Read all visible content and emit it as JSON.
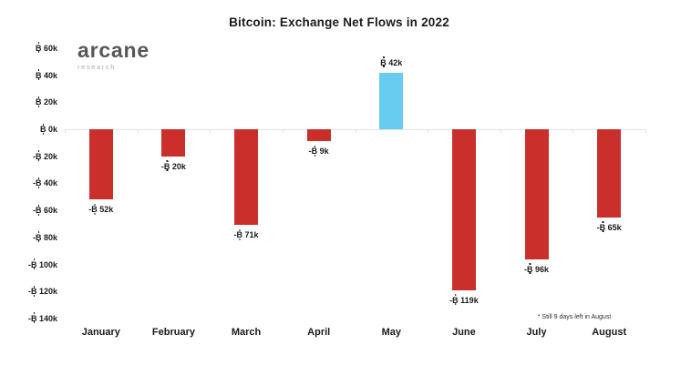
{
  "title": "Bitcoin: Exchange Net Flows in 2022",
  "logo": {
    "name": "arcane",
    "tagline": "research"
  },
  "footnote": "* Still 9 days left in August",
  "colors": {
    "negative_bar": "#cb2f2b",
    "positive_bar": "#68cbf0",
    "axis": "#e4e4e4",
    "text": "#1b1b1b"
  },
  "chart_data": {
    "type": "bar",
    "title": "Bitcoin: Exchange Net Flows in 2022",
    "categories": [
      "January",
      "February",
      "March",
      "April",
      "May",
      "June",
      "July",
      "August"
    ],
    "values": [
      -52,
      -20,
      -71,
      -9,
      42,
      -119,
      -96,
      -65
    ],
    "unit": "thousand BTC",
    "bar_labels": [
      "-₿ 52k",
      "-₿ 20k",
      "-₿ 71k",
      "-₿ 9k",
      "₿ 42k",
      "-₿ 119k",
      "-₿ 96k",
      "-₿ 65k"
    ],
    "y_ticks": [
      60,
      40,
      20,
      0,
      -20,
      -40,
      -60,
      -80,
      -100,
      -120,
      -140
    ],
    "y_tick_labels": [
      "₿ 60k",
      "₿ 40k",
      "₿ 20k",
      "₿ 0k",
      "-₿ 20k",
      "-₿ 40k",
      "-₿ 60k",
      "-₿ 80k",
      "-₿ 100k",
      "-₿ 120k",
      "-₿ 140k"
    ],
    "xlabel": "",
    "ylabel": "",
    "ylim": [
      -140,
      60
    ],
    "grid": false,
    "legend": false,
    "annotation": "* Still 9 days left in August"
  }
}
